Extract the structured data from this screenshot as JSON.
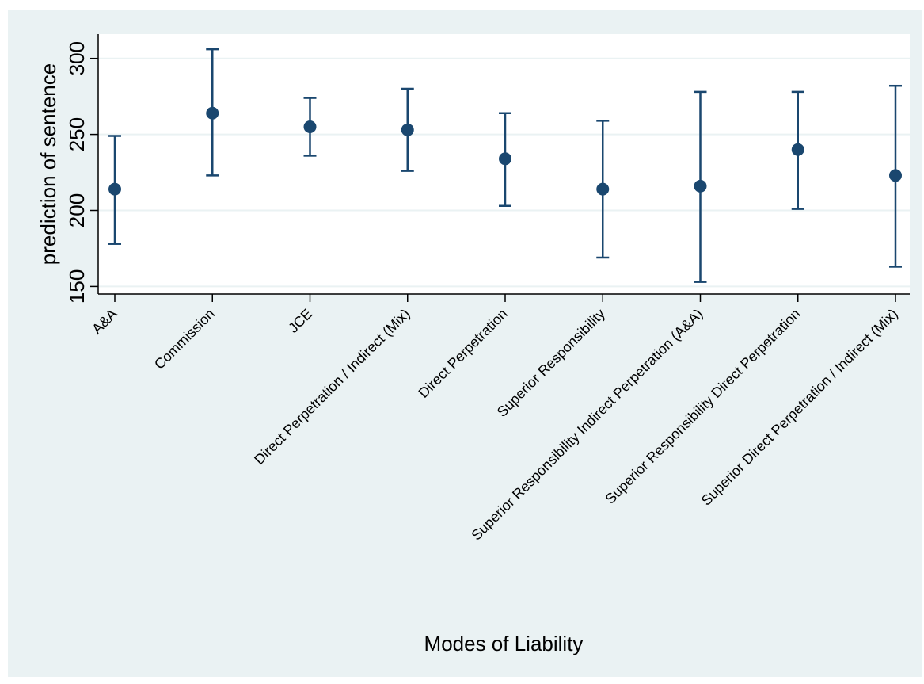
{
  "chart_data": {
    "type": "scatter",
    "subtype": "point-estimate-with-error-bars",
    "xlabel": "Modes of Liability",
    "ylabel": "prediction of sentence",
    "ylim": [
      145,
      316
    ],
    "yticks": [
      150,
      200,
      250,
      300
    ],
    "grid": true,
    "colors": {
      "marker": "#1a476f",
      "background": "#eaf2f3",
      "plot_bg": "#ffffff",
      "grid": "#eaf2f3"
    },
    "categories": [
      "A&A",
      "Commission",
      "JCE",
      "Direct Perpetration / Indirect (Mix)",
      "Direct Perpetration",
      "Superior Responsibility",
      "Superior Responsibility Indirect Perpetration (A&A)",
      "Superior Responsibility Direct Perpetration",
      "Superior Direct Perpetration / Indirect (Mix)"
    ],
    "points": [
      {
        "estimate": 214,
        "lower": 178,
        "upper": 249
      },
      {
        "estimate": 264,
        "lower": 223,
        "upper": 306
      },
      {
        "estimate": 255,
        "lower": 236,
        "upper": 274
      },
      {
        "estimate": 253,
        "lower": 226,
        "upper": 280
      },
      {
        "estimate": 234,
        "lower": 203,
        "upper": 264
      },
      {
        "estimate": 214,
        "lower": 169,
        "upper": 259
      },
      {
        "estimate": 216,
        "lower": 153,
        "upper": 278
      },
      {
        "estimate": 240,
        "lower": 201,
        "upper": 278
      },
      {
        "estimate": 223,
        "lower": 163,
        "upper": 282
      }
    ]
  }
}
